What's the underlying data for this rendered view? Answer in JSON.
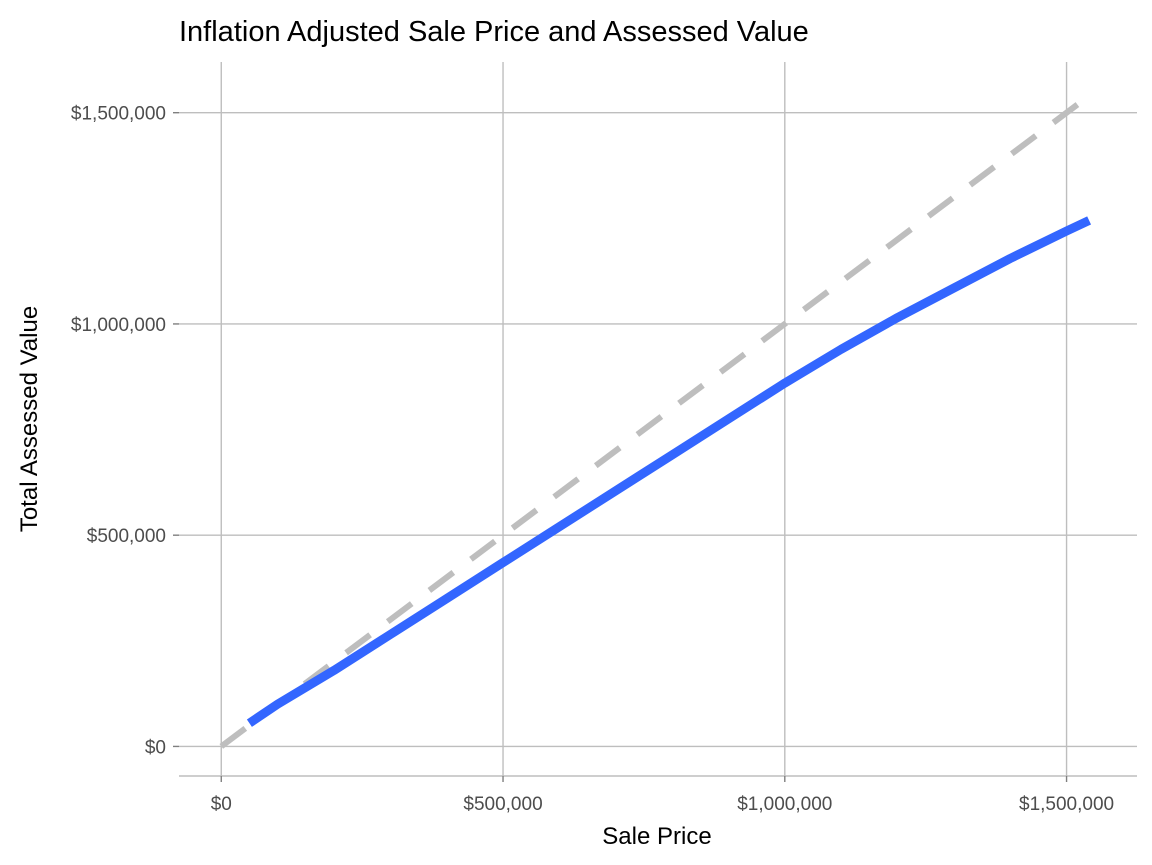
{
  "chart_data": {
    "type": "line",
    "title": "Inflation Adjusted Sale Price and Assessed Value",
    "xlabel": "Sale Price",
    "ylabel": "Total Assessed Value",
    "xlim": [
      -75000,
      1625000
    ],
    "ylim": [
      -70000,
      1620000
    ],
    "x_ticks": [
      {
        "value": 0,
        "label": "$0"
      },
      {
        "value": 500000,
        "label": "$500,000"
      },
      {
        "value": 1000000,
        "label": "$1,000,000"
      },
      {
        "value": 1500000,
        "label": "$1,500,000"
      }
    ],
    "y_ticks": [
      {
        "value": 0,
        "label": "$0"
      },
      {
        "value": 500000,
        "label": "$500,000"
      },
      {
        "value": 1000000,
        "label": "$1,000,000"
      },
      {
        "value": 1500000,
        "label": "$1,500,000"
      }
    ],
    "grid": true,
    "legend": "none",
    "series": [
      {
        "style": "solid",
        "color": "#3366ff",
        "x": [
          50000,
          100000,
          200000,
          300000,
          400000,
          500000,
          600000,
          700000,
          800000,
          900000,
          1000000,
          1100000,
          1200000,
          1300000,
          1400000,
          1500000,
          1540000
        ],
        "y": [
          55000,
          100000,
          180000,
          265000,
          350000,
          435000,
          520000,
          605000,
          690000,
          775000,
          860000,
          940000,
          1015000,
          1085000,
          1155000,
          1220000,
          1245000
        ]
      },
      {
        "style": "dashed",
        "color": "#bebebe",
        "x": [
          0,
          1540000
        ],
        "y": [
          0,
          1540000
        ]
      }
    ]
  }
}
